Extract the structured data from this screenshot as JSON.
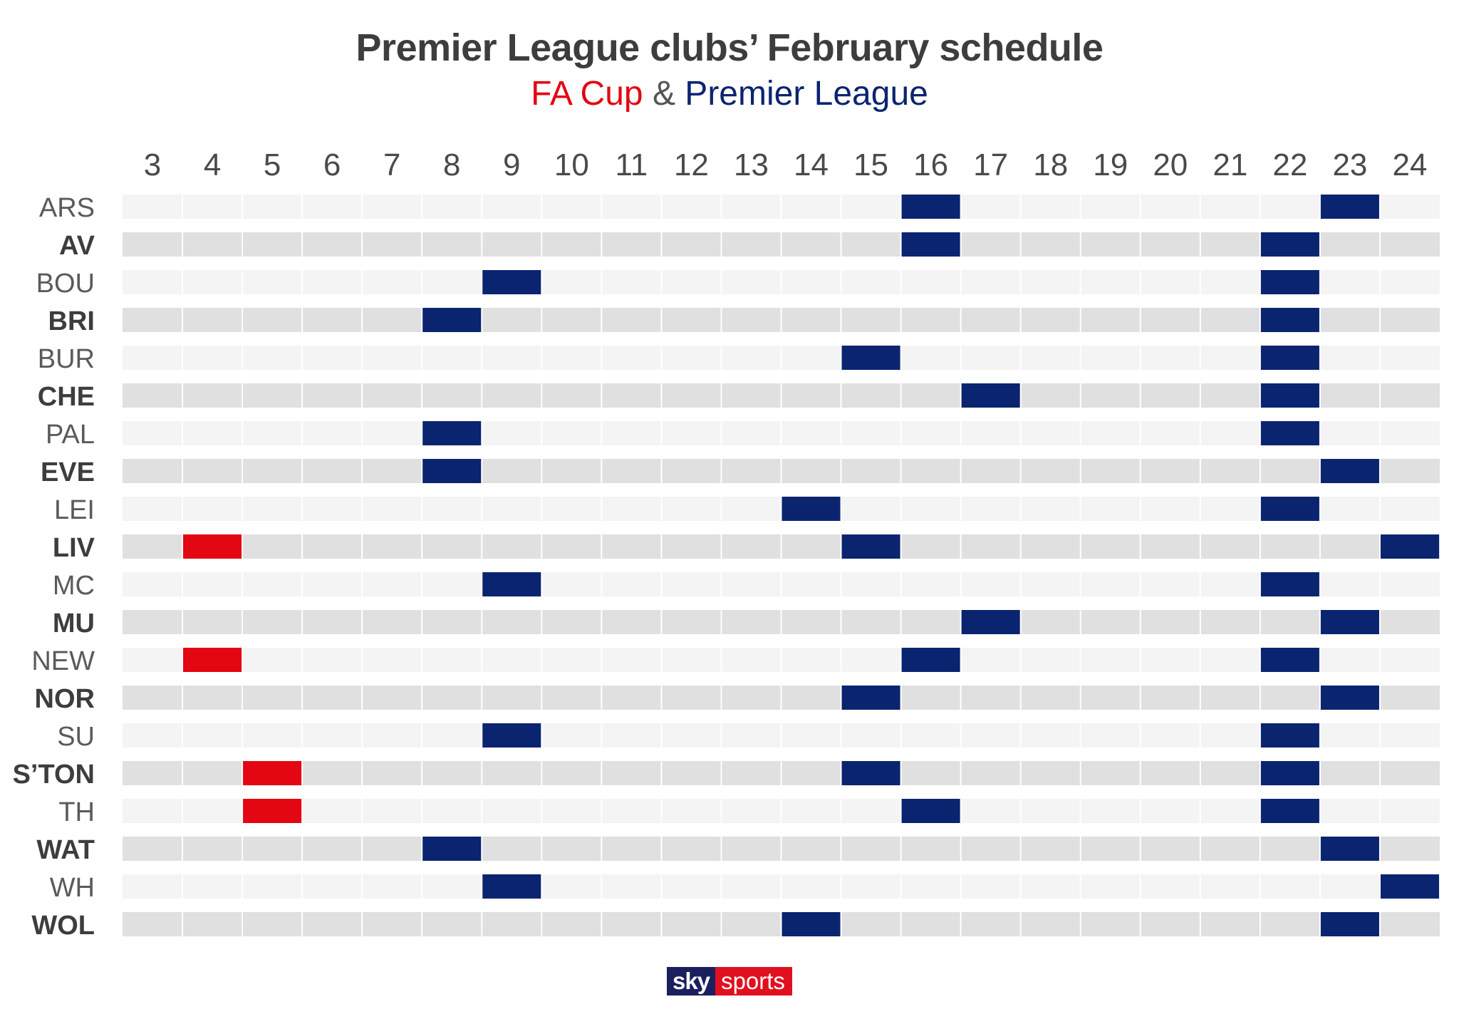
{
  "chart_data": {
    "type": "heatmap",
    "title": "Premier League clubs’ February schedule",
    "subtitle": {
      "part1": "FA Cup",
      "separator": " & ",
      "part2": "Premier League"
    },
    "days": [
      3,
      4,
      5,
      6,
      7,
      8,
      9,
      10,
      11,
      12,
      13,
      14,
      15,
      16,
      17,
      18,
      19,
      20,
      21,
      22,
      23,
      24
    ],
    "series": [
      {
        "name": "FA Cup",
        "color": "#e30613"
      },
      {
        "name": "Premier League",
        "color": "#0b2470"
      }
    ],
    "row_colors": {
      "odd": "#f4f4f4",
      "even": "#e0e0e0"
    },
    "clubs": [
      {
        "name": "ARS",
        "fa_cup": [],
        "premier_league": [
          16,
          23
        ]
      },
      {
        "name": "AV",
        "fa_cup": [],
        "premier_league": [
          16,
          22
        ]
      },
      {
        "name": "BOU",
        "fa_cup": [],
        "premier_league": [
          9,
          22
        ]
      },
      {
        "name": "BRI",
        "fa_cup": [],
        "premier_league": [
          8,
          22
        ]
      },
      {
        "name": "BUR",
        "fa_cup": [],
        "premier_league": [
          15,
          22
        ]
      },
      {
        "name": "CHE",
        "fa_cup": [],
        "premier_league": [
          17,
          22
        ]
      },
      {
        "name": "PAL",
        "fa_cup": [],
        "premier_league": [
          8,
          22
        ]
      },
      {
        "name": "EVE",
        "fa_cup": [],
        "premier_league": [
          8,
          23
        ]
      },
      {
        "name": "LEI",
        "fa_cup": [],
        "premier_league": [
          14,
          22
        ]
      },
      {
        "name": "LIV",
        "fa_cup": [
          4
        ],
        "premier_league": [
          15,
          24
        ]
      },
      {
        "name": "MC",
        "fa_cup": [],
        "premier_league": [
          9,
          22
        ]
      },
      {
        "name": "MU",
        "fa_cup": [],
        "premier_league": [
          17,
          23
        ]
      },
      {
        "name": "NEW",
        "fa_cup": [
          4
        ],
        "premier_league": [
          16,
          22
        ]
      },
      {
        "name": "NOR",
        "fa_cup": [],
        "premier_league": [
          15,
          23
        ]
      },
      {
        "name": "SU",
        "fa_cup": [],
        "premier_league": [
          9,
          22
        ]
      },
      {
        "name": "S’TON",
        "fa_cup": [
          5
        ],
        "premier_league": [
          15,
          22
        ]
      },
      {
        "name": "TH",
        "fa_cup": [
          5
        ],
        "premier_league": [
          16,
          22
        ]
      },
      {
        "name": "WAT",
        "fa_cup": [],
        "premier_league": [
          8,
          23
        ]
      },
      {
        "name": "WH",
        "fa_cup": [],
        "premier_league": [
          9,
          24
        ]
      },
      {
        "name": "WOL",
        "fa_cup": [],
        "premier_league": [
          14,
          23
        ]
      }
    ]
  },
  "branding": {
    "logo_part1": "sky",
    "logo_part2": "sports"
  }
}
